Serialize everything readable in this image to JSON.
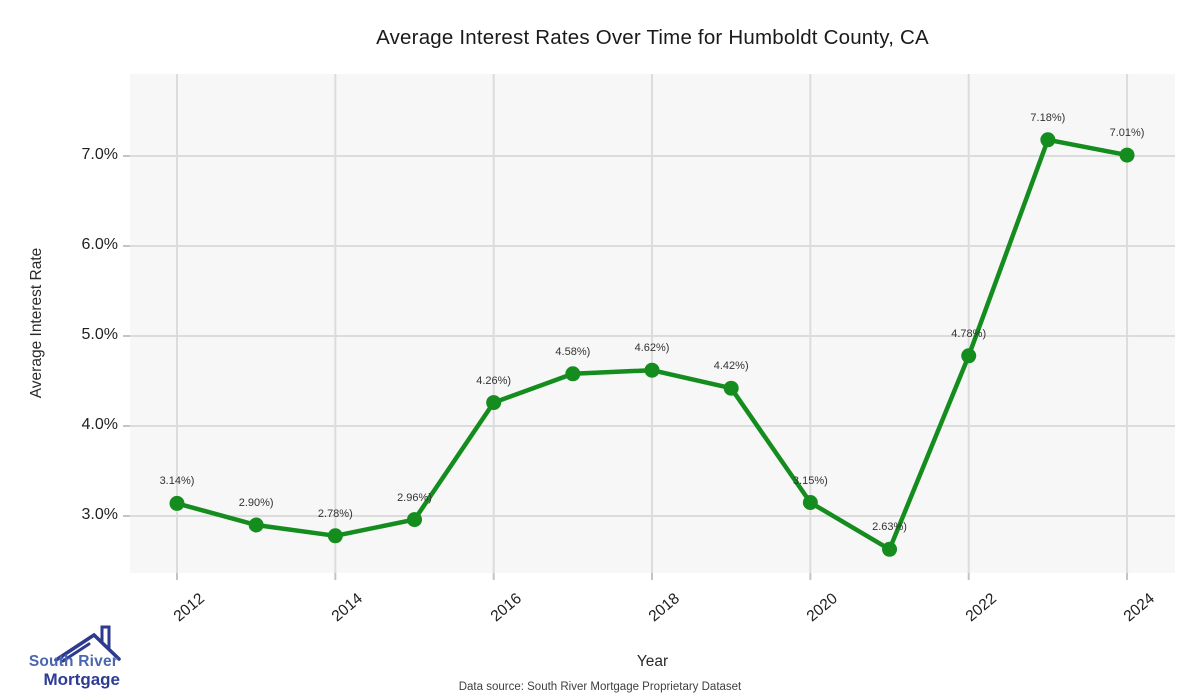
{
  "title": "Average Interest Rates Over Time for Humboldt County, CA",
  "chart_data": {
    "type": "line",
    "x": [
      2012,
      2013,
      2014,
      2015,
      2016,
      2017,
      2018,
      2019,
      2020,
      2021,
      2022,
      2023,
      2024
    ],
    "values": [
      3.14,
      2.9,
      2.78,
      2.96,
      4.26,
      4.58,
      4.62,
      4.42,
      3.15,
      2.63,
      4.78,
      7.18,
      7.01
    ],
    "point_labels": [
      "3.14%)",
      "2.90%)",
      "2.78%)",
      "2.96%)",
      "4.26%)",
      "4.58%)",
      "4.62%)",
      "4.42%)",
      "3.15%)",
      "2.63%)",
      "4.78%)",
      "7.18%)",
      "7.01%)"
    ],
    "x_ticks": [
      2012,
      2014,
      2016,
      2018,
      2020,
      2022,
      2024
    ],
    "x_tick_labels": [
      "2012",
      "2014",
      "2016",
      "2018",
      "2020",
      "2022",
      "2024"
    ],
    "y_ticks": [
      3,
      4,
      5,
      6,
      7
    ],
    "y_tick_labels": [
      "3.0%",
      "4.0%",
      "5.0%",
      "6.0%",
      "7.0%"
    ],
    "xlabel": "Year",
    "ylabel": "Average Interest Rate",
    "xlim": [
      2011.4,
      2024.6
    ],
    "ylim": [
      2.37,
      7.91
    ],
    "grid": true,
    "legend": "none",
    "line_color": "#148c1e",
    "marker_color": "#148c1e",
    "plot_bg": "#f7f7f7",
    "grid_color": "#dcdcdc",
    "tick_color": "#c4c4c4"
  },
  "footer": {
    "source_note": "Data source: South River Mortgage Proprietary Dataset"
  },
  "logo": {
    "line1": "South River",
    "line2": "Mortgage",
    "roof_color": "#2d3a8e",
    "line1_color": "#4b66b0",
    "line2_color": "#2d3c96"
  }
}
